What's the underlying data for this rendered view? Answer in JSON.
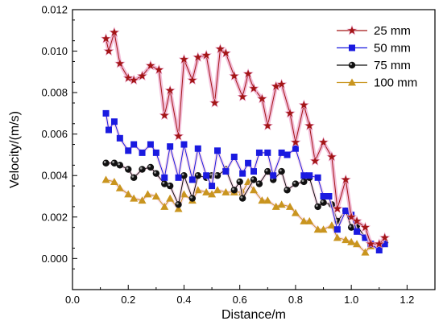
{
  "chart_data": {
    "type": "line",
    "xlabel": "Distance/m",
    "ylabel": "Velocity/(m/s)",
    "xlim": [
      0.0,
      1.3
    ],
    "ylim": [
      -0.0015,
      0.012
    ],
    "x_ticks": [
      0.0,
      0.2,
      0.4,
      0.6,
      0.8,
      1.0,
      1.2
    ],
    "x_tick_labels": [
      "0.0",
      "0.2",
      "0.4",
      "0.6",
      "0.8",
      "1.0",
      "1.2"
    ],
    "y_ticks": [
      0.0,
      0.002,
      0.004,
      0.006,
      0.008,
      0.01,
      0.012
    ],
    "y_tick_labels": [
      "0.000",
      "0.002",
      "0.004",
      "0.006",
      "0.008",
      "0.010",
      "0.012"
    ],
    "legend_position": "top-right",
    "grid": false,
    "series": [
      {
        "name": "25 mm",
        "color": "#a31515",
        "marker": "star",
        "points": [
          [
            0.12,
            0.0106
          ],
          [
            0.13,
            0.01
          ],
          [
            0.15,
            0.0109
          ],
          [
            0.17,
            0.0094
          ],
          [
            0.2,
            0.0087
          ],
          [
            0.22,
            0.0086
          ],
          [
            0.25,
            0.0088
          ],
          [
            0.28,
            0.0093
          ],
          [
            0.31,
            0.0091
          ],
          [
            0.33,
            0.0069
          ],
          [
            0.35,
            0.0081
          ],
          [
            0.38,
            0.0059
          ],
          [
            0.4,
            0.0096
          ],
          [
            0.43,
            0.0086
          ],
          [
            0.45,
            0.0097
          ],
          [
            0.48,
            0.0098
          ],
          [
            0.51,
            0.0075
          ],
          [
            0.53,
            0.0101
          ],
          [
            0.55,
            0.0099
          ],
          [
            0.58,
            0.0088
          ],
          [
            0.61,
            0.0078
          ],
          [
            0.63,
            0.0089
          ],
          [
            0.65,
            0.0082
          ],
          [
            0.68,
            0.0077
          ],
          [
            0.7,
            0.0064
          ],
          [
            0.73,
            0.0083
          ],
          [
            0.75,
            0.0084
          ],
          [
            0.78,
            0.007
          ],
          [
            0.8,
            0.0056
          ],
          [
            0.83,
            0.0074
          ],
          [
            0.85,
            0.0064
          ],
          [
            0.87,
            0.0047
          ],
          [
            0.9,
            0.0056
          ],
          [
            0.93,
            0.0049
          ],
          [
            0.95,
            0.0024
          ],
          [
            0.98,
            0.0038
          ],
          [
            1.0,
            0.002
          ],
          [
            1.02,
            0.0018
          ],
          [
            1.05,
            0.0015
          ],
          [
            1.07,
            0.0007
          ],
          [
            1.1,
            0.0007
          ],
          [
            1.12,
            0.001
          ]
        ]
      },
      {
        "name": "50 mm",
        "color": "#1a1ae0",
        "marker": "square",
        "points": [
          [
            0.12,
            0.007
          ],
          [
            0.13,
            0.0062
          ],
          [
            0.15,
            0.0066
          ],
          [
            0.17,
            0.0058
          ],
          [
            0.2,
            0.0052
          ],
          [
            0.22,
            0.0055
          ],
          [
            0.25,
            0.0051
          ],
          [
            0.28,
            0.0055
          ],
          [
            0.3,
            0.0051
          ],
          [
            0.33,
            0.0039
          ],
          [
            0.35,
            0.0054
          ],
          [
            0.38,
            0.0039
          ],
          [
            0.4,
            0.0055
          ],
          [
            0.43,
            0.0038
          ],
          [
            0.45,
            0.0053
          ],
          [
            0.48,
            0.004
          ],
          [
            0.5,
            0.0035
          ],
          [
            0.52,
            0.0052
          ],
          [
            0.55,
            0.0042
          ],
          [
            0.58,
            0.0049
          ],
          [
            0.61,
            0.0041
          ],
          [
            0.63,
            0.0046
          ],
          [
            0.65,
            0.0042
          ],
          [
            0.67,
            0.0051
          ],
          [
            0.7,
            0.0051
          ],
          [
            0.72,
            0.004
          ],
          [
            0.75,
            0.0051
          ],
          [
            0.77,
            0.005
          ],
          [
            0.8,
            0.0053
          ],
          [
            0.83,
            0.004
          ],
          [
            0.85,
            0.004
          ],
          [
            0.88,
            0.0039
          ],
          [
            0.9,
            0.003
          ],
          [
            0.92,
            0.003
          ],
          [
            0.95,
            0.0014
          ],
          [
            0.98,
            0.0023
          ],
          [
            1.0,
            0.0021
          ],
          [
            1.02,
            0.0013
          ],
          [
            1.05,
            0.001
          ],
          [
            1.07,
            0.0007
          ],
          [
            1.1,
            0.0004
          ],
          [
            1.12,
            0.0007
          ]
        ]
      },
      {
        "name": "75 mm",
        "color": "#111111",
        "marker": "circle",
        "points": [
          [
            0.12,
            0.0046
          ],
          [
            0.15,
            0.0046
          ],
          [
            0.17,
            0.0045
          ],
          [
            0.2,
            0.0043
          ],
          [
            0.22,
            0.0039
          ],
          [
            0.25,
            0.0043
          ],
          [
            0.28,
            0.0044
          ],
          [
            0.3,
            0.0041
          ],
          [
            0.33,
            0.0036
          ],
          [
            0.35,
            0.0035
          ],
          [
            0.38,
            0.0026
          ],
          [
            0.4,
            0.004
          ],
          [
            0.43,
            0.0029
          ],
          [
            0.45,
            0.004
          ],
          [
            0.48,
            0.0039
          ],
          [
            0.5,
            0.004
          ],
          [
            0.52,
            0.004
          ],
          [
            0.55,
            0.0043
          ],
          [
            0.58,
            0.0033
          ],
          [
            0.6,
            0.0037
          ],
          [
            0.61,
            0.0029
          ],
          [
            0.65,
            0.0038
          ],
          [
            0.67,
            0.0036
          ],
          [
            0.7,
            0.0042
          ],
          [
            0.72,
            0.0038
          ],
          [
            0.75,
            0.0042
          ],
          [
            0.77,
            0.0033
          ],
          [
            0.8,
            0.0036
          ],
          [
            0.83,
            0.0037
          ],
          [
            0.85,
            0.0039
          ],
          [
            0.88,
            0.0025
          ],
          [
            0.9,
            0.0027
          ],
          [
            0.93,
            0.0026
          ],
          [
            0.95,
            0.0018
          ],
          [
            0.98,
            0.0023
          ],
          [
            1.0,
            0.0015
          ],
          [
            1.02,
            0.0016
          ],
          [
            1.05,
            0.001
          ],
          [
            1.07,
            0.0007
          ],
          [
            1.1,
            0.0005
          ],
          [
            1.12,
            0.0008
          ]
        ]
      },
      {
        "name": "100 mm",
        "color": "#c9951f",
        "marker": "triangle",
        "points": [
          [
            0.12,
            0.0038
          ],
          [
            0.15,
            0.0037
          ],
          [
            0.17,
            0.0034
          ],
          [
            0.2,
            0.0031
          ],
          [
            0.22,
            0.0029
          ],
          [
            0.25,
            0.0028
          ],
          [
            0.27,
            0.0031
          ],
          [
            0.3,
            0.003
          ],
          [
            0.33,
            0.0025
          ],
          [
            0.35,
            0.0029
          ],
          [
            0.38,
            0.0024
          ],
          [
            0.4,
            0.0031
          ],
          [
            0.43,
            0.0028
          ],
          [
            0.45,
            0.0033
          ],
          [
            0.48,
            0.0032
          ],
          [
            0.5,
            0.0031
          ],
          [
            0.52,
            0.0033
          ],
          [
            0.55,
            0.0032
          ],
          [
            0.58,
            0.0032
          ],
          [
            0.61,
            0.0032
          ],
          [
            0.63,
            0.0037
          ],
          [
            0.65,
            0.0033
          ],
          [
            0.68,
            0.0028
          ],
          [
            0.7,
            0.0028
          ],
          [
            0.73,
            0.0025
          ],
          [
            0.75,
            0.0026
          ],
          [
            0.78,
            0.0025
          ],
          [
            0.8,
            0.0022
          ],
          [
            0.83,
            0.0018
          ],
          [
            0.85,
            0.0018
          ],
          [
            0.88,
            0.0014
          ],
          [
            0.9,
            0.0014
          ],
          [
            0.93,
            0.0016
          ],
          [
            0.95,
            0.001
          ],
          [
            0.98,
            0.0009
          ],
          [
            1.0,
            0.0008
          ],
          [
            1.02,
            0.0007
          ],
          [
            1.05,
            0.0003
          ],
          [
            1.07,
            0.0006
          ],
          [
            1.1,
            0.0007
          ],
          [
            1.12,
            0.0009
          ]
        ]
      }
    ]
  }
}
